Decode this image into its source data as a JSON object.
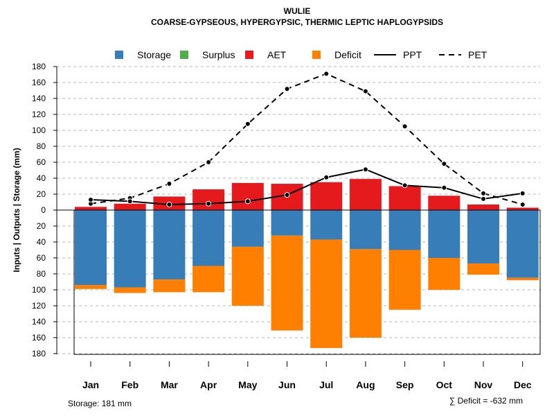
{
  "chart_data": {
    "type": "bar",
    "title": "WULIE",
    "subtitle": "COARSE-GYPSEOUS, HYPERGYPSIC, THERMIC LEPTIC HAPLOGYPSIDS",
    "ylabel": "Inputs | Outputs | Storage    (mm)",
    "categories": [
      "Jan",
      "Feb",
      "Mar",
      "Apr",
      "May",
      "Jun",
      "Jul",
      "Aug",
      "Sep",
      "Oct",
      "Nov",
      "Dec"
    ],
    "ylim": [
      -180,
      180
    ],
    "yticks": [
      180,
      160,
      140,
      120,
      100,
      80,
      60,
      40,
      20,
      0,
      -20,
      -40,
      -60,
      -80,
      -100,
      -120,
      -140,
      -160,
      -180
    ],
    "ytick_labels": [
      "180",
      "160",
      "140",
      "120",
      "100",
      "80",
      "60",
      "40",
      "20",
      "0",
      "20",
      "40",
      "60",
      "80",
      "100",
      "120",
      "140",
      "160",
      "180"
    ],
    "legend": [
      {
        "label": "Storage",
        "kind": "box",
        "color": "#377eb8"
      },
      {
        "label": "Surplus",
        "kind": "box",
        "color": "#4daf4a"
      },
      {
        "label": "AET",
        "kind": "box",
        "color": "#e41a1c"
      },
      {
        "label": "Deficit",
        "kind": "box",
        "color": "#ff7f00"
      },
      {
        "label": "PPT",
        "kind": "solid",
        "color": "#000000"
      },
      {
        "label": "PET",
        "kind": "dashed",
        "color": "#000000"
      }
    ],
    "series": [
      {
        "name": "AET",
        "color": "#e41a1c",
        "values": [
          4,
          8,
          17,
          26,
          34,
          33,
          35,
          39,
          30,
          18,
          7,
          3
        ]
      },
      {
        "name": "Storage",
        "color": "#377eb8",
        "values": [
          94,
          97,
          87,
          70,
          46,
          32,
          37,
          49,
          50,
          60,
          67,
          85
        ]
      },
      {
        "name": "Deficit",
        "color": "#ff7f00",
        "values": [
          5,
          7,
          16,
          33,
          74,
          119,
          136,
          111,
          75,
          40,
          14,
          3
        ]
      },
      {
        "name": "Surplus",
        "color": "#4daf4a",
        "values": [
          0,
          0,
          0,
          0,
          0,
          0,
          0,
          0,
          0,
          0,
          0,
          0
        ]
      },
      {
        "name": "PPT",
        "color": "#000000",
        "style": "solid",
        "values": [
          13,
          11,
          7,
          8,
          11,
          19,
          41,
          51,
          31,
          28,
          14,
          21
        ]
      },
      {
        "name": "PET",
        "color": "#000000",
        "style": "dashed",
        "values": [
          8,
          15,
          33,
          60,
          108,
          152,
          171,
          149,
          105,
          58,
          21,
          7
        ]
      }
    ],
    "storage_capacity": 181,
    "footer_left": "Storage: 181 mm",
    "footer_right": "∑ Deficit = -632 mm"
  }
}
